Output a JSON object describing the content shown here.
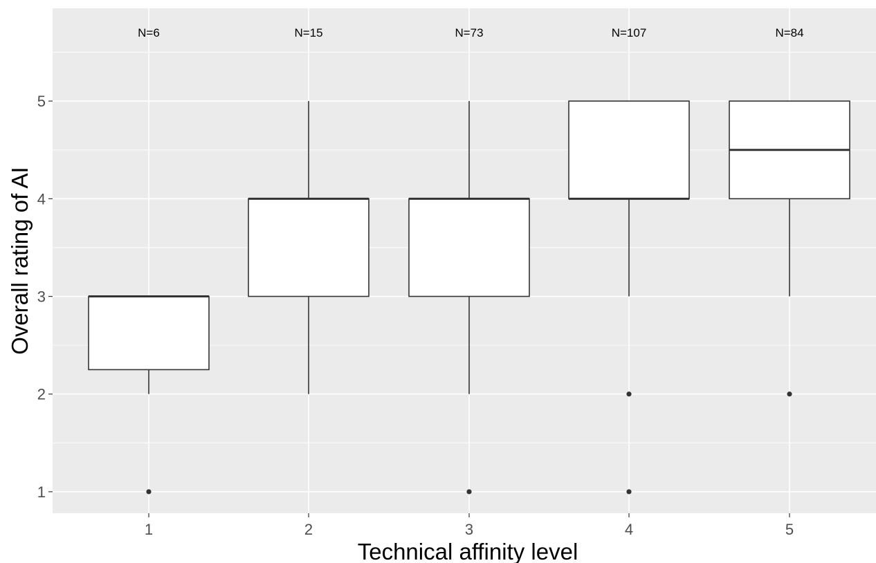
{
  "chart_data": {
    "type": "box",
    "title": "",
    "xlabel": "Technical affinity level",
    "ylabel": "Overall rating of AI",
    "ylim": [
      0.78,
      5.95
    ],
    "y_ticks": [
      1,
      2,
      3,
      4,
      5
    ],
    "grid": true,
    "legend": "none",
    "categories": [
      "1",
      "2",
      "3",
      "4",
      "5"
    ],
    "n_labels": [
      "N=6",
      "N=15",
      "N=73",
      "N=107",
      "N=84"
    ],
    "boxes": [
      {
        "category": "1",
        "whisker_low": 2,
        "q1": 2.25,
        "median": 3,
        "q3": 3,
        "whisker_high": 3,
        "outliers": [
          1
        ]
      },
      {
        "category": "2",
        "whisker_low": 2,
        "q1": 3,
        "median": 4,
        "q3": 4,
        "whisker_high": 5,
        "outliers": []
      },
      {
        "category": "3",
        "whisker_low": 2,
        "q1": 3,
        "median": 4,
        "q3": 4,
        "whisker_high": 5,
        "outliers": [
          1
        ]
      },
      {
        "category": "4",
        "whisker_low": 3,
        "q1": 4,
        "median": 4,
        "q3": 5,
        "whisker_high": 5,
        "outliers": [
          2,
          1
        ]
      },
      {
        "category": "5",
        "whisker_low": 3,
        "q1": 4,
        "median": 4.5,
        "q3": 5,
        "whisker_high": 5,
        "outliers": [
          2
        ]
      }
    ],
    "colors": {
      "panel": "#ebebeb",
      "grid": "#ffffff",
      "box_fill": "#ffffff",
      "box_line": "#333333",
      "tick_text": "#4d4d4d",
      "title_text": "#000000"
    }
  }
}
